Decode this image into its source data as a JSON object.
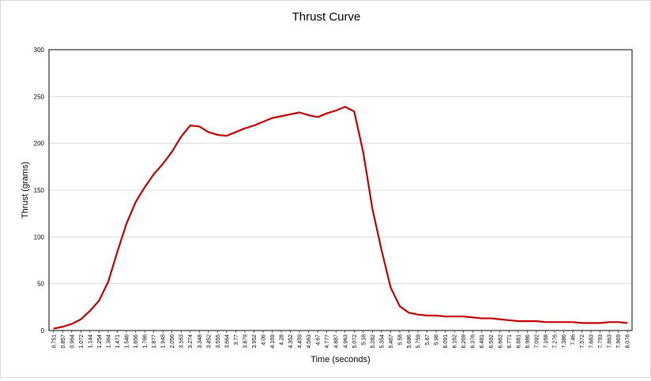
{
  "chart_data": {
    "type": "line",
    "title": "Thrust Curve",
    "xlabel": "Time (seconds)",
    "ylabel": "Thrust (grams)",
    "ylim": [
      0,
      300
    ],
    "yticks": [
      0,
      50,
      100,
      150,
      200,
      250,
      300
    ],
    "grid": true,
    "legend": "none",
    "line_color": "#c00000",
    "x": [
      "0.751",
      "0.857",
      "0.964",
      "1.072",
      "1.144",
      "1.254",
      "1.364",
      "1.471",
      "1.546",
      "1.656",
      "1.766",
      "1.877",
      "1.948",
      "2.056",
      "3.163",
      "3.274",
      "3.348",
      "3.452",
      "3.555",
      "3.664",
      "3.77",
      "3.879",
      "3.952",
      "4.06",
      "4.169",
      "4.28",
      "4.352",
      "4.459",
      "4.563",
      "4.67",
      "4.777",
      "4.887",
      "4.963",
      "5.072",
      "5.18",
      "5.282",
      "5.354",
      "5.467",
      "5.58",
      "5.686",
      "5.759",
      "5.87",
      "5.98",
      "6.091",
      "6.162",
      "6.269",
      "6.376",
      "6.481",
      "6.592",
      "6.662",
      "6.771",
      "6.881",
      "6.986",
      "7.092",
      "7.168",
      "7.276",
      "7.386",
      "7.46",
      "7.572",
      "7.683",
      "7.793",
      "7.863",
      "7.969",
      "8.078"
    ],
    "series": [
      {
        "values": [
          2,
          4,
          7,
          12,
          21,
          32,
          52,
          84,
          114,
          137,
          153,
          167,
          178,
          191,
          207,
          219,
          218,
          212,
          209,
          208,
          212,
          216,
          219,
          223,
          227,
          229,
          231,
          233,
          230,
          228,
          232,
          235,
          239,
          234,
          190,
          130,
          86,
          46,
          26,
          19,
          17,
          16,
          16,
          15,
          15,
          15,
          14,
          13,
          13,
          12,
          11,
          10,
          10,
          10,
          9,
          9,
          9,
          9,
          8,
          8,
          8,
          9,
          9,
          8
        ]
      }
    ]
  }
}
